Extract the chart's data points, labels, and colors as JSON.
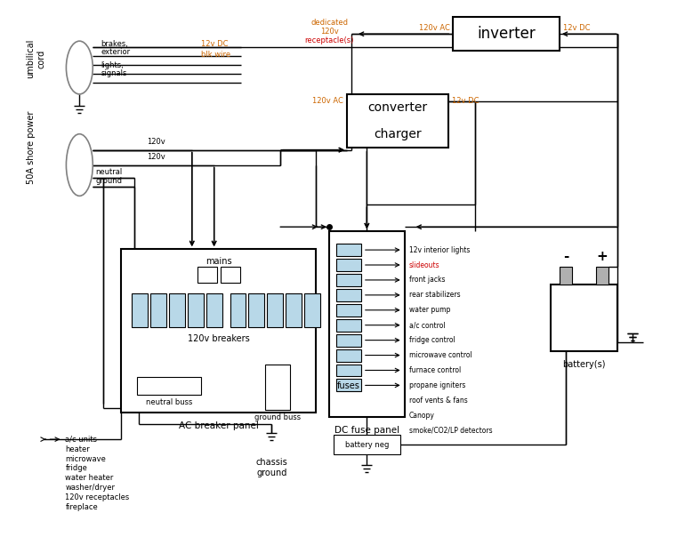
{
  "bg_color": "#ffffff",
  "line_color": "#000000",
  "orange_color": "#cc6600",
  "red_color": "#cc0000",
  "fuse_color": "#b8d8e8",
  "fuse_items": [
    "12v interior lights",
    "slideouts",
    "front jacks",
    "rear stabilizers",
    "water pump",
    "a/c control",
    "fridge control",
    "microwave control",
    "furnace control",
    "propane igniters",
    "roof vents & fans",
    "Canopy",
    "smoke/CO2/LP detectors"
  ],
  "ac_loads": [
    "a/c units",
    "heater",
    "microwave",
    "fridge",
    "water heater",
    "washer/dryer",
    "120v receptacles",
    "fireplace"
  ]
}
